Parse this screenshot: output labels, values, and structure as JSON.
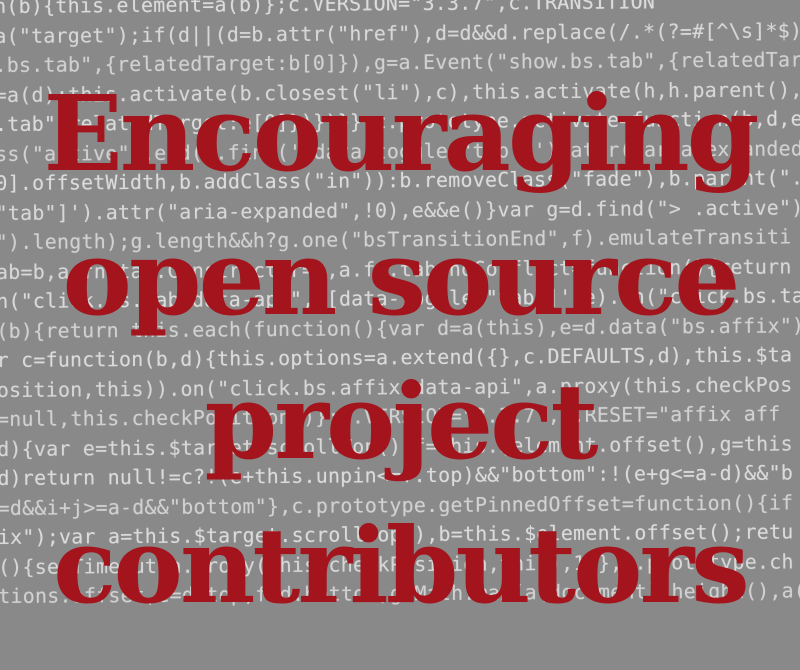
{
  "code_lines": [
    "n(b){this.element=a(b)};c.VERSION=\"3.3.7\",c.TRANSITION",
    "a(\"target\");if(d||(d=b.attr(\"href\"),d=d&&d.replace(/.*(?=#[^\\s]*$)/",
    ".bs.tab\",{relatedTarget:b[0]}),g=a.Event(\"show.bs.tab\",{relatedTarge",
    "=a(d);this.activate(b.closest(\"li\"),c),this.activate(h,h.parent(),",
    ".tab\",relatedTarget:e[0]})})}},c.prototype.activate=function(b,d,e",
    "ss(\"active\").end().find('[data-toggle=\"tab\"]').attr(\"aria-expanded",
    "0].offsetWidth,b.addClass(\"in\")):b.removeClass(\"fade\"),b.parent(\".",
    "\"tab\"]').attr(\"aria-expanded\",!0),e&&e()}var g=d.find(\"> .active\")",
    "\").length);g.length&&h?g.one(\"bsTransitionEnd\",f).emulateTransiti",
    "ab=b,a.fn.tab.Constructor=c,a.fn.tab.noConflict=function(){return",
    "n(\"click.bs.tab.data-api\",'[data-toggle=\"tab\"]',e).on(\"click.bs.ta",
    "(b){return this.each(function(){var d=a(this),e=d.data(\"bs.affix\")",
    "r c=function(b,d){this.options=a.extend({},c.DEFAULTS,d),this.$ta",
    "osition,this)).on(\"click.bs.affix.data-api\",a.proxy(this.checkPos",
    "=null,this.checkPosition()};c.VERSION=\"3.3.7\",c.RESET=\"affix aff",
    "d){var e=this.$target.scrollTop(),f=this.$element.offset(),g=this",
    "d)return null!=c?!(e+this.unpin<=f.top)&&\"bottom\":!(e+g<=a-d)&&\"b",
    "=d&&i+j>=a-d&&\"bottom\"},c.prototype.getPinnedOffset=function(){if",
    "ix\");var a=this.$target.scrollTop(),b=this.$element.offset();retu",
    "(){setTimeout(a.proxy(this.checkPosition,this),1)},c.prototype.ch",
    "tions.offset,e=d.top,f=d.bottom,g=Math.max(a(document).height(),a("
  ],
  "headline": {
    "line1": "Encouraging",
    "line2": "open source",
    "line3": "project",
    "line4": "contributors"
  },
  "colors": {
    "headline": "#a3141c",
    "background": "#8b8b8b",
    "code_text": "#ececec"
  }
}
